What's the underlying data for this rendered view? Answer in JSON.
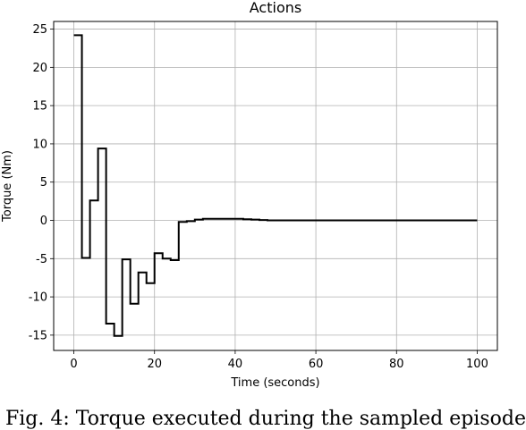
{
  "chart_data": {
    "type": "line",
    "title": "Actions",
    "xlabel": "Time (seconds)",
    "ylabel": "Torque (Nm)",
    "xlim": [
      -5,
      105
    ],
    "ylim": [
      -17,
      26
    ],
    "xticks": [
      0,
      20,
      40,
      60,
      80,
      100
    ],
    "yticks": [
      -15,
      -10,
      -5,
      0,
      5,
      10,
      15,
      20,
      25
    ],
    "grid": true,
    "step": "post",
    "series": [
      {
        "x": [
          0,
          2,
          4,
          6,
          8,
          10,
          12,
          14,
          16,
          18,
          20,
          22,
          24,
          26,
          28,
          30,
          32,
          34,
          36,
          38,
          40,
          42,
          44,
          46,
          48,
          50,
          100
        ],
        "y": [
          24.2,
          -4.9,
          2.6,
          9.4,
          -13.5,
          -15.1,
          -5.1,
          -10.9,
          -6.8,
          -8.2,
          -4.3,
          -5.0,
          -5.2,
          -0.2,
          -0.1,
          0.1,
          0.2,
          0.2,
          0.2,
          0.2,
          0.2,
          0.15,
          0.1,
          0.05,
          0.0,
          0.0,
          0.0
        ]
      }
    ]
  },
  "caption": "Fig. 4: Torque executed during the sampled episode"
}
